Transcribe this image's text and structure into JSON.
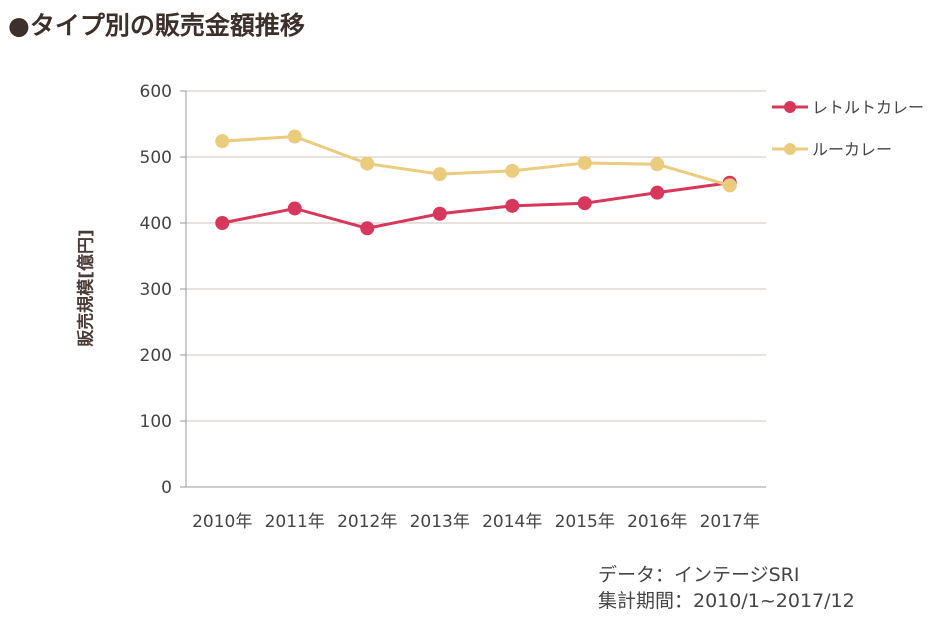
{
  "chart_data": {
    "type": "line",
    "title": "●タイプ別の販売金額推移",
    "ylabel": "販売規模[億円]",
    "xlabel": "",
    "categories": [
      "2010年",
      "2011年",
      "2012年",
      "2013年",
      "2014年",
      "2015年",
      "2016年",
      "2017年"
    ],
    "ylim": [
      0,
      600
    ],
    "yticks": [
      0,
      100,
      200,
      300,
      400,
      500,
      600
    ],
    "grid": true,
    "legend_position": "right",
    "series": [
      {
        "name": "レトルトカレー",
        "color": "#d7375a",
        "values": [
          400,
          422,
          392,
          414,
          426,
          430,
          446,
          461
        ]
      },
      {
        "name": "ルーカレー",
        "color": "#ebcb7c",
        "values": [
          524,
          531,
          490,
          474,
          479,
          491,
          489,
          457
        ]
      }
    ],
    "source": [
      "データ：インテージSRI",
      "集計期間：2010/1~2017/12"
    ]
  }
}
